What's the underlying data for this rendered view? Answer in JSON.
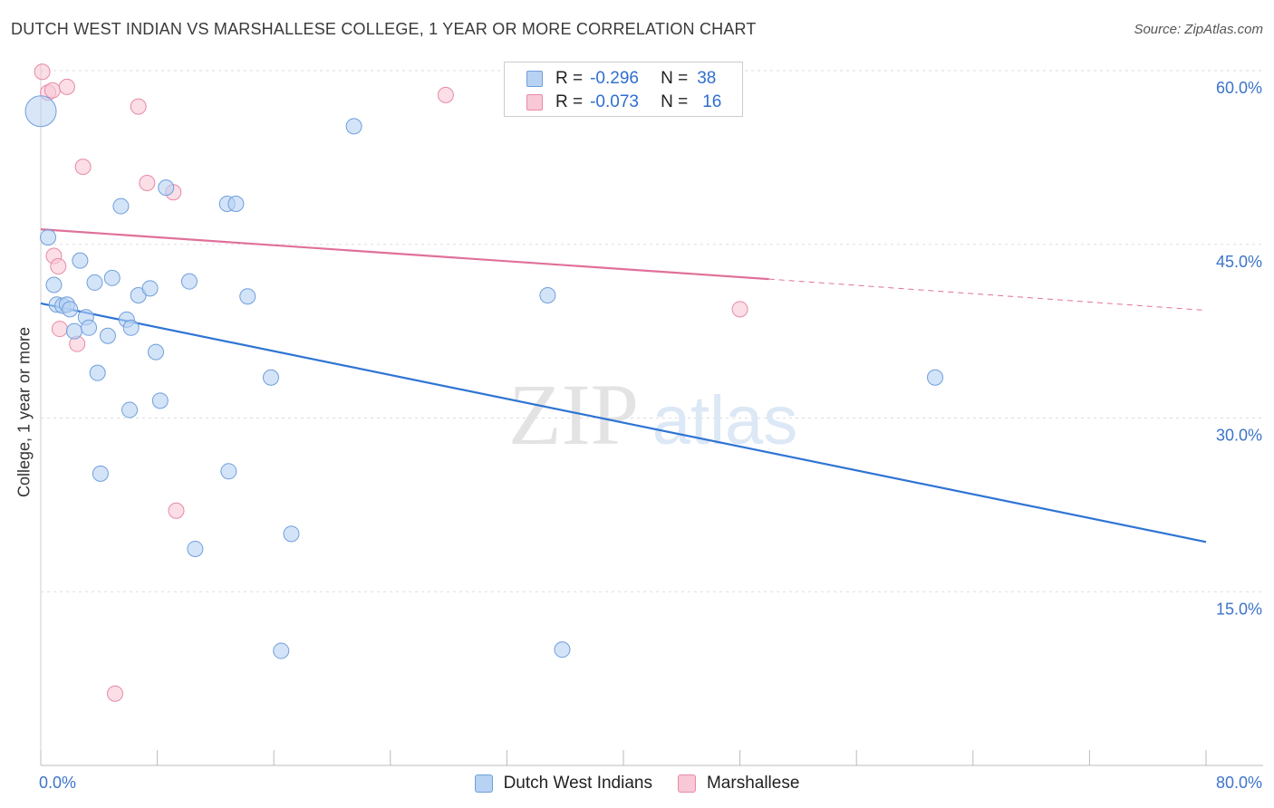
{
  "title": "DUTCH WEST INDIAN VS MARSHALLESE COLLEGE, 1 YEAR OR MORE CORRELATION CHART",
  "source": "Source: ZipAtlas.com",
  "watermark": {
    "zip": "ZIP",
    "atlas": "atlas"
  },
  "legend": {
    "rows": [
      {
        "r_label": "R =",
        "r_value": "-0.296",
        "n_label": "N =",
        "n_value": "38"
      },
      {
        "r_label": "R =",
        "r_value": "-0.073",
        "n_label": "N =",
        "n_value": "16"
      }
    ]
  },
  "colors": {
    "blue_fill": "#b8d2f3",
    "blue_stroke": "#6f9fdc",
    "blue_line": "#2f74d4",
    "pink_fill": "#f8c8d6",
    "pink_stroke": "#e88aa7",
    "pink_line": "#e0709a",
    "grid": "#dddddd",
    "axis_text": "#3d74c9"
  },
  "chart_data": {
    "type": "scatter",
    "title": "DUTCH WEST INDIAN VS MARSHALLESE COLLEGE, 1 YEAR OR MORE CORRELATION CHART",
    "xlabel": "",
    "ylabel": "College, 1 year or more",
    "xlim": [
      0,
      80
    ],
    "ylim": [
      0,
      60
    ],
    "x_tick_labels": [
      "0.0%",
      "80.0%"
    ],
    "y_tick_values": [
      15,
      30,
      45,
      60
    ],
    "y_tick_labels": [
      "15.0%",
      "30.0%",
      "45.0%",
      "60.0%"
    ],
    "grid": true,
    "legend_position": "top-center",
    "series": [
      {
        "name": "Dutch West Indians",
        "r": -0.296,
        "n": 38,
        "trend": {
          "x": [
            0,
            80
          ],
          "y": [
            39.9,
            19.3
          ]
        },
        "points": [
          {
            "x": 0.0,
            "y": 56.5,
            "big": true
          },
          {
            "x": 0.5,
            "y": 45.6
          },
          {
            "x": 0.9,
            "y": 41.5
          },
          {
            "x": 1.1,
            "y": 39.8
          },
          {
            "x": 1.5,
            "y": 39.7
          },
          {
            "x": 1.8,
            "y": 39.8
          },
          {
            "x": 2.0,
            "y": 39.4
          },
          {
            "x": 2.3,
            "y": 37.5
          },
          {
            "x": 2.7,
            "y": 43.6
          },
          {
            "x": 3.1,
            "y": 38.7
          },
          {
            "x": 3.3,
            "y": 37.8
          },
          {
            "x": 3.7,
            "y": 41.7
          },
          {
            "x": 3.9,
            "y": 33.9
          },
          {
            "x": 4.1,
            "y": 25.2
          },
          {
            "x": 4.6,
            "y": 37.1
          },
          {
            "x": 4.9,
            "y": 42.1
          },
          {
            "x": 5.5,
            "y": 48.3
          },
          {
            "x": 5.9,
            "y": 38.5
          },
          {
            "x": 6.1,
            "y": 30.7
          },
          {
            "x": 6.2,
            "y": 37.8
          },
          {
            "x": 6.7,
            "y": 40.6
          },
          {
            "x": 7.5,
            "y": 41.2
          },
          {
            "x": 7.9,
            "y": 35.7
          },
          {
            "x": 8.2,
            "y": 31.5
          },
          {
            "x": 8.6,
            "y": 49.9
          },
          {
            "x": 10.2,
            "y": 41.8
          },
          {
            "x": 10.6,
            "y": 18.7
          },
          {
            "x": 12.8,
            "y": 48.5
          },
          {
            "x": 12.9,
            "y": 25.4
          },
          {
            "x": 13.4,
            "y": 48.5
          },
          {
            "x": 14.2,
            "y": 40.5
          },
          {
            "x": 15.8,
            "y": 33.5
          },
          {
            "x": 16.5,
            "y": 9.9
          },
          {
            "x": 17.2,
            "y": 20.0
          },
          {
            "x": 21.5,
            "y": 55.2
          },
          {
            "x": 34.8,
            "y": 40.6
          },
          {
            "x": 35.8,
            "y": 10.0
          },
          {
            "x": 61.4,
            "y": 33.5
          }
        ]
      },
      {
        "name": "Marshallese",
        "r": -0.073,
        "n": 16,
        "trend": {
          "x": [
            0,
            50
          ],
          "y": [
            46.3,
            42.0
          ],
          "dashed_to": {
            "x": 80,
            "y": 39.3
          }
        },
        "points": [
          {
            "x": 0.1,
            "y": 59.9
          },
          {
            "x": 0.5,
            "y": 58.1
          },
          {
            "x": 0.8,
            "y": 58.3
          },
          {
            "x": 0.9,
            "y": 44.0
          },
          {
            "x": 1.2,
            "y": 43.1
          },
          {
            "x": 1.3,
            "y": 37.7
          },
          {
            "x": 1.8,
            "y": 58.6
          },
          {
            "x": 2.5,
            "y": 36.4
          },
          {
            "x": 2.9,
            "y": 51.7
          },
          {
            "x": 5.1,
            "y": 6.2
          },
          {
            "x": 6.7,
            "y": 56.9
          },
          {
            "x": 7.3,
            "y": 50.3
          },
          {
            "x": 9.1,
            "y": 49.5
          },
          {
            "x": 9.3,
            "y": 22.0
          },
          {
            "x": 27.8,
            "y": 57.9
          },
          {
            "x": 48.0,
            "y": 39.4
          }
        ]
      }
    ]
  }
}
